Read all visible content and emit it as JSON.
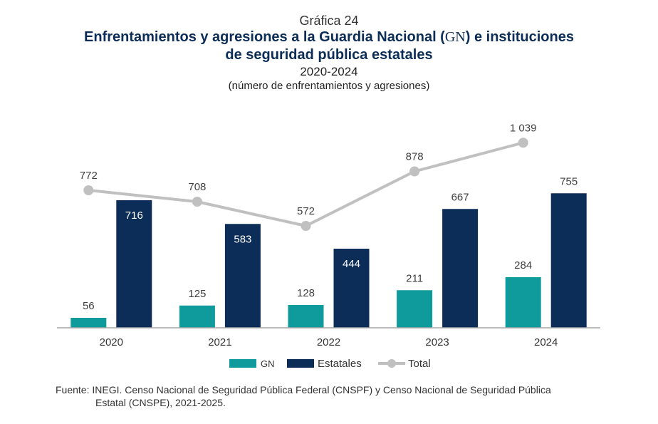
{
  "header": {
    "label": "Gráfica 24",
    "title_part1": "Enfrentamientos y agresiones a la Guardia Nacional (",
    "title_gn": "GN",
    "title_part2": ") e instituciones",
    "title_line2": "de seguridad pública estatales",
    "years": "2020-2024",
    "units": "(número de enfrentamientos y agresiones)"
  },
  "chart_data": {
    "type": "bar",
    "categories": [
      "2020",
      "2021",
      "2022",
      "2023",
      "2024"
    ],
    "series": [
      {
        "name": "GN",
        "type": "bar",
        "values": [
          56,
          125,
          128,
          211,
          284
        ],
        "color": "#0f9a9b"
      },
      {
        "name": "Estatales",
        "type": "bar",
        "values": [
          716,
          583,
          444,
          667,
          755
        ],
        "color": "#0c2d57"
      },
      {
        "name": "Total",
        "type": "line",
        "values": [
          772,
          708,
          572,
          878,
          1039
        ],
        "color": "#c0c0c0"
      }
    ],
    "value_labels": {
      "GN": [
        "56",
        "125",
        "128",
        "211",
        "284"
      ],
      "Estatales": [
        "716",
        "583",
        "444",
        "667",
        "755"
      ],
      "Total": [
        "772",
        "708",
        "572",
        "878",
        "1 039"
      ]
    },
    "ylim": [
      0,
      1200
    ],
    "grid": false,
    "legend_position": "bottom"
  },
  "source": {
    "prefix": "Fuente: ",
    "inegi": "INEGI",
    "text1": ". Censo Nacional de Seguridad Pública Federal (",
    "cnspf": "CNSPF",
    "text2": ") y Censo Nacional de Seguridad Pública",
    "text3": "Estatal (",
    "cnspe": "CNSPE",
    "text4": "), 2021-2025."
  }
}
